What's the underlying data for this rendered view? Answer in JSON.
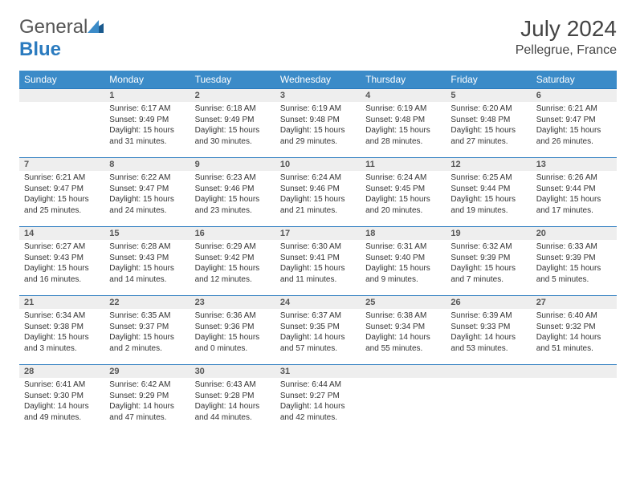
{
  "logo": {
    "general": "General",
    "blue": "Blue"
  },
  "header": {
    "title": "July 2024",
    "location": "Pellegrue, France"
  },
  "weekdays": [
    "Sunday",
    "Monday",
    "Tuesday",
    "Wednesday",
    "Thursday",
    "Friday",
    "Saturday"
  ],
  "colors": {
    "header_bg": "#3b8bc8",
    "header_fg": "#ffffff",
    "daynum_bg": "#eeeeee",
    "border": "#2b7bbf",
    "logo_blue": "#2b7bbf"
  },
  "layout": {
    "cols": 7,
    "rows": 5,
    "first_day_column": 1
  },
  "days": [
    {
      "n": "1",
      "sr": "6:17 AM",
      "ss": "9:49 PM",
      "dh": "15",
      "dm": "31"
    },
    {
      "n": "2",
      "sr": "6:18 AM",
      "ss": "9:49 PM",
      "dh": "15",
      "dm": "30"
    },
    {
      "n": "3",
      "sr": "6:19 AM",
      "ss": "9:48 PM",
      "dh": "15",
      "dm": "29"
    },
    {
      "n": "4",
      "sr": "6:19 AM",
      "ss": "9:48 PM",
      "dh": "15",
      "dm": "28"
    },
    {
      "n": "5",
      "sr": "6:20 AM",
      "ss": "9:48 PM",
      "dh": "15",
      "dm": "27"
    },
    {
      "n": "6",
      "sr": "6:21 AM",
      "ss": "9:47 PM",
      "dh": "15",
      "dm": "26"
    },
    {
      "n": "7",
      "sr": "6:21 AM",
      "ss": "9:47 PM",
      "dh": "15",
      "dm": "25"
    },
    {
      "n": "8",
      "sr": "6:22 AM",
      "ss": "9:47 PM",
      "dh": "15",
      "dm": "24"
    },
    {
      "n": "9",
      "sr": "6:23 AM",
      "ss": "9:46 PM",
      "dh": "15",
      "dm": "23"
    },
    {
      "n": "10",
      "sr": "6:24 AM",
      "ss": "9:46 PM",
      "dh": "15",
      "dm": "21"
    },
    {
      "n": "11",
      "sr": "6:24 AM",
      "ss": "9:45 PM",
      "dh": "15",
      "dm": "20"
    },
    {
      "n": "12",
      "sr": "6:25 AM",
      "ss": "9:44 PM",
      "dh": "15",
      "dm": "19"
    },
    {
      "n": "13",
      "sr": "6:26 AM",
      "ss": "9:44 PM",
      "dh": "15",
      "dm": "17"
    },
    {
      "n": "14",
      "sr": "6:27 AM",
      "ss": "9:43 PM",
      "dh": "15",
      "dm": "16"
    },
    {
      "n": "15",
      "sr": "6:28 AM",
      "ss": "9:43 PM",
      "dh": "15",
      "dm": "14"
    },
    {
      "n": "16",
      "sr": "6:29 AM",
      "ss": "9:42 PM",
      "dh": "15",
      "dm": "12"
    },
    {
      "n": "17",
      "sr": "6:30 AM",
      "ss": "9:41 PM",
      "dh": "15",
      "dm": "11"
    },
    {
      "n": "18",
      "sr": "6:31 AM",
      "ss": "9:40 PM",
      "dh": "15",
      "dm": "9"
    },
    {
      "n": "19",
      "sr": "6:32 AM",
      "ss": "9:39 PM",
      "dh": "15",
      "dm": "7"
    },
    {
      "n": "20",
      "sr": "6:33 AM",
      "ss": "9:39 PM",
      "dh": "15",
      "dm": "5"
    },
    {
      "n": "21",
      "sr": "6:34 AM",
      "ss": "9:38 PM",
      "dh": "15",
      "dm": "3"
    },
    {
      "n": "22",
      "sr": "6:35 AM",
      "ss": "9:37 PM",
      "dh": "15",
      "dm": "2"
    },
    {
      "n": "23",
      "sr": "6:36 AM",
      "ss": "9:36 PM",
      "dh": "15",
      "dm": "0"
    },
    {
      "n": "24",
      "sr": "6:37 AM",
      "ss": "9:35 PM",
      "dh": "14",
      "dm": "57"
    },
    {
      "n": "25",
      "sr": "6:38 AM",
      "ss": "9:34 PM",
      "dh": "14",
      "dm": "55"
    },
    {
      "n": "26",
      "sr": "6:39 AM",
      "ss": "9:33 PM",
      "dh": "14",
      "dm": "53"
    },
    {
      "n": "27",
      "sr": "6:40 AM",
      "ss": "9:32 PM",
      "dh": "14",
      "dm": "51"
    },
    {
      "n": "28",
      "sr": "6:41 AM",
      "ss": "9:30 PM",
      "dh": "14",
      "dm": "49"
    },
    {
      "n": "29",
      "sr": "6:42 AM",
      "ss": "9:29 PM",
      "dh": "14",
      "dm": "47"
    },
    {
      "n": "30",
      "sr": "6:43 AM",
      "ss": "9:28 PM",
      "dh": "14",
      "dm": "44"
    },
    {
      "n": "31",
      "sr": "6:44 AM",
      "ss": "9:27 PM",
      "dh": "14",
      "dm": "42"
    }
  ]
}
